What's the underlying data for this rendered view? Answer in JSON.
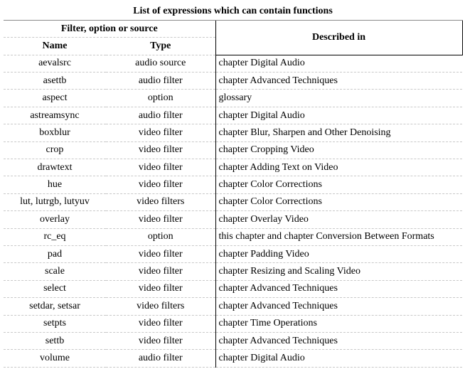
{
  "table": {
    "title": "List of expressions which can contain functions",
    "group_header": "Filter, option or source",
    "col_name": "Name",
    "col_type": "Type",
    "col_desc": "Described in",
    "rows": [
      {
        "name": "aevalsrc",
        "type": "audio source",
        "desc": "chapter Digital Audio"
      },
      {
        "name": "asettb",
        "type": "audio filter",
        "desc": "chapter Advanced Techniques"
      },
      {
        "name": "aspect",
        "type": "option",
        "desc": "glossary"
      },
      {
        "name": "astreamsync",
        "type": "audio filter",
        "desc": "chapter Digital Audio"
      },
      {
        "name": "boxblur",
        "type": "video filter",
        "desc": "chapter Blur, Sharpen and Other Denoising"
      },
      {
        "name": "crop",
        "type": "video filter",
        "desc": "chapter Cropping Video"
      },
      {
        "name": "drawtext",
        "type": "video filter",
        "desc": "chapter Adding Text on Video"
      },
      {
        "name": "hue",
        "type": "video filter",
        "desc": "chapter Color Corrections"
      },
      {
        "name": "lut, lutrgb, lutyuv",
        "type": "video filters",
        "desc": "chapter Color Corrections"
      },
      {
        "name": "overlay",
        "type": "video filter",
        "desc": "chapter Overlay Video"
      },
      {
        "name": "rc_eq",
        "type": "option",
        "desc": "this chapter and chapter Conversion Between Formats"
      },
      {
        "name": "pad",
        "type": "video filter",
        "desc": "chapter Padding Video"
      },
      {
        "name": "scale",
        "type": "video filter",
        "desc": "chapter Resizing and Scaling Video"
      },
      {
        "name": "select",
        "type": "video filter",
        "desc": "chapter Advanced Techniques"
      },
      {
        "name": "setdar, setsar",
        "type": "video filters",
        "desc": "chapter Advanced Techniques"
      },
      {
        "name": "setpts",
        "type": "video filter",
        "desc": "chapter Time Operations"
      },
      {
        "name": "settb",
        "type": "video filter",
        "desc": "chapter Advanced Techniques"
      },
      {
        "name": "volume",
        "type": "audio filter",
        "desc": "chapter Digital Audio"
      }
    ]
  }
}
